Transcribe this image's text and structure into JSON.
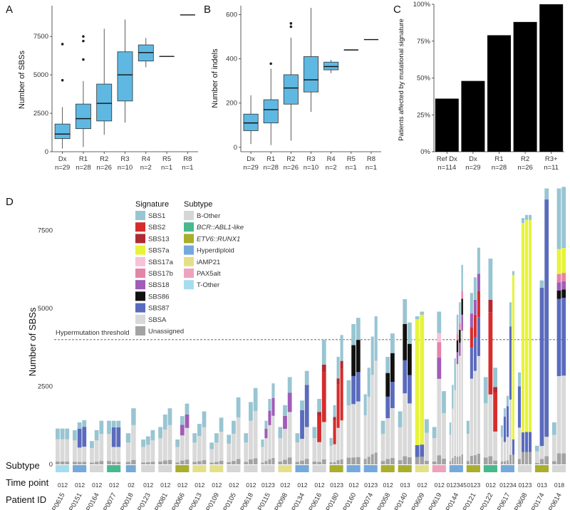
{
  "chart_data": [
    {
      "panel": "A",
      "type": "box",
      "ylabel": "Number of SBSs",
      "ylim": [
        0,
        9500
      ],
      "yticks": [
        0,
        2500,
        5000,
        7500
      ],
      "categories": [
        "Dx",
        "R1",
        "R2",
        "R3",
        "R4",
        "R5",
        "R8"
      ],
      "counts": [
        "n=29",
        "n=28",
        "n=26",
        "n=10",
        "n=2",
        "n=1",
        "n=1"
      ],
      "boxes": [
        {
          "min": 200,
          "q1": 850,
          "median": 1150,
          "q3": 1800,
          "max": 2900,
          "outliers": [
            4650,
            7000
          ]
        },
        {
          "min": 300,
          "q1": 1500,
          "median": 2150,
          "q3": 3100,
          "max": 4600,
          "outliers": [
            6000,
            7200,
            7500
          ]
        },
        {
          "min": 1100,
          "q1": 2000,
          "median": 3150,
          "q3": 4400,
          "max": 8000,
          "outliers": []
        },
        {
          "min": 1900,
          "q1": 3300,
          "median": 5000,
          "q3": 6500,
          "max": 8600,
          "outliers": []
        },
        {
          "min": 5500,
          "q1": 5900,
          "median": 6450,
          "q3": 6950,
          "max": 7400,
          "outliers": []
        },
        {
          "single": 6200
        },
        {
          "single": 8900
        }
      ]
    },
    {
      "panel": "B",
      "type": "box",
      "ylabel": "Number of indels",
      "ylim": [
        -20,
        640
      ],
      "yticks": [
        0,
        200,
        400,
        600
      ],
      "categories": [
        "Dx",
        "R1",
        "R2",
        "R3",
        "R4",
        "R5",
        "R8"
      ],
      "counts": [
        "n=29",
        "n=28",
        "n=26",
        "n=10",
        "n=2",
        "n=1",
        "n=1"
      ],
      "boxes": [
        {
          "min": 15,
          "q1": 75,
          "median": 110,
          "q3": 150,
          "max": 235,
          "outliers": []
        },
        {
          "min": 10,
          "q1": 110,
          "median": 170,
          "q3": 215,
          "max": 355,
          "outliers": [
            378
          ]
        },
        {
          "min": 30,
          "q1": 195,
          "median": 268,
          "q3": 328,
          "max": 495,
          "outliers": [
            545,
            560
          ]
        },
        {
          "min": 160,
          "q1": 250,
          "median": 305,
          "q3": 410,
          "max": 630,
          "outliers": []
        },
        {
          "min": 335,
          "q1": 350,
          "median": 365,
          "q3": 385,
          "max": 395,
          "outliers": []
        },
        {
          "single": 440
        },
        {
          "single": 487
        }
      ]
    },
    {
      "panel": "C",
      "type": "bar",
      "ylabel": "Patients affected by mutational signature",
      "ylim": [
        0,
        100
      ],
      "yticks": [
        "0%",
        "25%",
        "50%",
        "75%",
        "100%"
      ],
      "categories": [
        "Ref Dx",
        "Dx",
        "R1",
        "R2",
        "R3+"
      ],
      "counts": [
        "n=114",
        "n=29",
        "n=28",
        "n=26",
        "n=11"
      ],
      "values": [
        36,
        48,
        79,
        88,
        100
      ]
    },
    {
      "panel": "D",
      "type": "stacked-bar",
      "ylabel": "Number of SBSs",
      "ylim": [
        0,
        9000
      ],
      "yticks": [
        2500,
        5000,
        7500
      ],
      "threshold": 4000,
      "threshold_label": "Hypermutation threshold",
      "row_labels": [
        "Subtype",
        "Time point",
        "Patient ID"
      ],
      "patients": [
        {
          "id": "P0615",
          "subtype": "T-Other",
          "tp": "012",
          "heights": [
            1150,
            1150,
            1150
          ]
        },
        {
          "id": "P0151",
          "subtype": "Hyperdiploid",
          "tp": "012",
          "heights": [
            1100,
            1350,
            1420
          ]
        },
        {
          "id": "P0164",
          "subtype": "B-Other",
          "tp": "012",
          "heights": [
            750,
            1100,
            1400
          ]
        },
        {
          "id": "P0077",
          "subtype": "BCR::ABL1-like",
          "tp": "012",
          "heights": [
            1400,
            1400,
            1400
          ]
        },
        {
          "id": "P0018",
          "subtype": "Hyperdiploid",
          "tp": "02",
          "heights": [
            1000,
            1800
          ]
        },
        {
          "id": "P0123",
          "subtype": "B-Other",
          "tp": "012",
          "heights": [
            800,
            900,
            1100
          ]
        },
        {
          "id": "P0081",
          "subtype": "B-Other",
          "tp": "012",
          "heights": [
            1200,
            1600,
            1800
          ]
        },
        {
          "id": "P0066",
          "subtype": "ETV6::RUNX1",
          "tp": "012",
          "heights": [
            800,
            1550,
            1950
          ]
        },
        {
          "id": "P0613",
          "subtype": "iAMP21",
          "tp": "012",
          "heights": [
            1000,
            1300,
            1700
          ]
        },
        {
          "id": "P0109",
          "subtype": "iAMP21",
          "tp": "012",
          "heights": [
            700,
            1000,
            1500
          ]
        },
        {
          "id": "P0105",
          "subtype": "B-Other",
          "tp": "012",
          "heights": [
            950,
            1400,
            2150
          ]
        },
        {
          "id": "P0618",
          "subtype": "B-Other",
          "tp": "012",
          "heights": [
            1000,
            2000,
            2450
          ]
        },
        {
          "id": "P0115",
          "subtype": "B-Other",
          "tp": "0123",
          "heights": [
            800,
            1400,
            2100,
            2600
          ]
        },
        {
          "id": "P0098",
          "subtype": "iAMP21",
          "tp": "012",
          "heights": [
            1200,
            1900,
            2800
          ]
        },
        {
          "id": "P0134",
          "subtype": "Hyperdiploid",
          "tp": "012",
          "heights": [
            1000,
            2050,
            3000
          ]
        },
        {
          "id": "P0616",
          "subtype": "B-Other",
          "tp": "012",
          "heights": [
            1200,
            2100,
            4000
          ]
        },
        {
          "id": "P0180",
          "subtype": "ETV6::RUNX1",
          "tp": "0123",
          "heights": [
            850,
            1900,
            3450,
            4150
          ]
        },
        {
          "id": "P0160",
          "subtype": "Hyperdiploid",
          "tp": "012",
          "heights": [
            2700,
            4500,
            4700
          ]
        },
        {
          "id": "P0074",
          "subtype": "Hyperdiploid",
          "tp": "0123",
          "heights": [
            2250,
            3100,
            4100,
            4750
          ]
        },
        {
          "id": "P0058",
          "subtype": "ETV6::RUNX1",
          "tp": "012",
          "heights": [
            1400,
            3450,
            4200
          ]
        },
        {
          "id": "P0140",
          "subtype": "ETV6::RUNX1",
          "tp": "013",
          "heights": [
            1700,
            5300,
            4550
          ]
        },
        {
          "id": "P0609",
          "subtype": "iAMP21",
          "tp": "012",
          "heights": [
            4750,
            4900,
            1450
          ]
        },
        {
          "id": "P0619",
          "subtype": "PAX5alt",
          "tp": "012",
          "heights": [
            1200,
            4900,
            2350
          ]
        },
        {
          "id": "P0144",
          "subtype": "Hyperdiploid",
          "tp": "012345",
          "heights": [
            1350,
            2550,
            3400,
            4800,
            5200,
            6400
          ]
        },
        {
          "id": "P0121",
          "subtype": "ETV6::RUNX1",
          "tp": "0123",
          "heights": [
            1400,
            5500,
            6000,
            6950
          ]
        },
        {
          "id": "P0122",
          "subtype": "BCR::ABL1-like",
          "tp": "012",
          "heights": [
            2800,
            6600,
            3100
          ]
        },
        {
          "id": "P0617",
          "subtype": "Hyperdiploid",
          "tp": "01234",
          "heights": [
            1250,
            1800,
            2200,
            5200,
            6200
          ]
        },
        {
          "id": "P0608",
          "subtype": "B-Other",
          "tp": "0123",
          "heights": [
            2950,
            7900,
            8000,
            8000
          ]
        },
        {
          "id": "P0174",
          "subtype": "ETV6::RUNX1",
          "tp": "013",
          "heights": [
            600,
            5900,
            8850
          ]
        },
        {
          "id": "P0614",
          "subtype": "B-Other",
          "tp": "018",
          "heights": [
            1350,
            8850,
            8900
          ]
        }
      ],
      "legend": {
        "signature_title": "Signature",
        "signatures": [
          {
            "name": "SBS1",
            "color": "#98c5d2"
          },
          {
            "name": "SBS2",
            "color": "#d62c2c"
          },
          {
            "name": "SBS13",
            "color": "#b02a33"
          },
          {
            "name": "SBS7a",
            "color": "#e7f33a"
          },
          {
            "name": "SBS17a",
            "color": "#f5c2d9"
          },
          {
            "name": "SBS17b",
            "color": "#e583a9"
          },
          {
            "name": "SBS18",
            "color": "#a05cb7"
          },
          {
            "name": "SBS86",
            "color": "#111111"
          },
          {
            "name": "SBS87",
            "color": "#5a6bbd"
          },
          {
            "name": "SBSA",
            "color": "#d9d9d9"
          },
          {
            "name": "Unassigned",
            "color": "#a3a3a3"
          }
        ],
        "subtype_title": "Subtype",
        "subtypes": [
          {
            "name": "B-Other",
            "color": "#d6d6d6"
          },
          {
            "name": "BCR::ABL1-like",
            "color": "#48b98f"
          },
          {
            "name": "ETV6::RUNX1",
            "color": "#a9ae2d"
          },
          {
            "name": "Hyperdiploid",
            "color": "#75a9dc"
          },
          {
            "name": "iAMP21",
            "color": "#e3e08a"
          },
          {
            "name": "PAX5alt",
            "color": "#eda3bd"
          },
          {
            "name": "T-Other",
            "color": "#a6dcef"
          }
        ]
      }
    }
  ],
  "colors": {
    "box_fill": "#5fb8e2",
    "bar_fill": "#000000"
  }
}
